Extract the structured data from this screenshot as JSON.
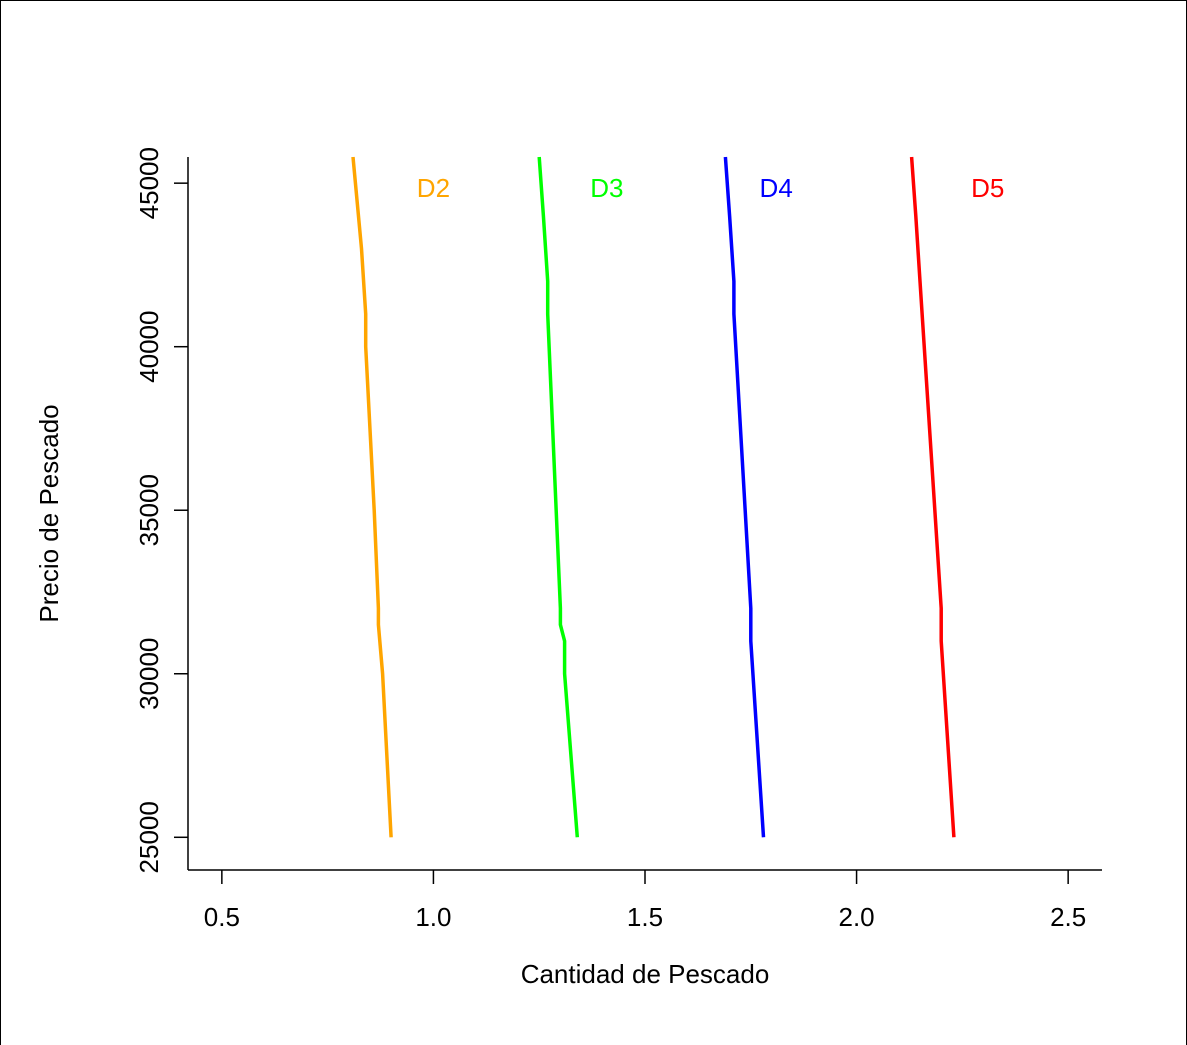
{
  "chart_data": {
    "type": "line",
    "xlabel": "Cantidad de Pescado",
    "ylabel": "Precio de Pescado",
    "xlim": [
      0.42,
      2.58
    ],
    "ylim": [
      24000,
      45800
    ],
    "xticks": [
      0.5,
      1.0,
      1.5,
      2.0,
      2.5
    ],
    "xtick_labels": [
      "0.5",
      "1.0",
      "1.5",
      "2.0",
      "2.5"
    ],
    "yticks": [
      25000,
      30000,
      35000,
      40000,
      45000
    ],
    "ytick_labels": [
      "25000",
      "30000",
      "35000",
      "40000",
      "45000"
    ],
    "grid": false,
    "series": [
      {
        "name": "D2",
        "color": "#FFA500",
        "label_at": [
          1.0,
          45000
        ],
        "x": [
          0.9,
          0.88,
          0.87,
          0.87,
          0.86,
          0.84,
          0.84,
          0.83,
          0.81
        ],
        "y": [
          25000,
          30000,
          31500,
          32000,
          35000,
          40000,
          41000,
          43000,
          45800
        ]
      },
      {
        "name": "D3",
        "color": "#00FF00",
        "label_at": [
          1.41,
          45000
        ],
        "x": [
          1.34,
          1.31,
          1.31,
          1.3,
          1.3,
          1.27,
          1.27,
          1.26,
          1.25
        ],
        "y": [
          25000,
          30000,
          31000,
          31500,
          32000,
          41000,
          42000,
          44000,
          45800
        ]
      },
      {
        "name": "D4",
        "color": "#0000FF",
        "label_at": [
          1.81,
          45000
        ],
        "x": [
          1.78,
          1.75,
          1.75,
          1.75,
          1.71,
          1.71,
          1.7,
          1.69
        ],
        "y": [
          25000,
          31000,
          31500,
          32000,
          41000,
          42000,
          44000,
          45800
        ]
      },
      {
        "name": "D5",
        "color": "#FF0000",
        "label_at": [
          2.31,
          45000
        ],
        "x": [
          2.23,
          2.2,
          2.2,
          2.2,
          2.15,
          2.14,
          2.13
        ],
        "y": [
          25000,
          31000,
          31500,
          32000,
          42000,
          44000,
          45800
        ]
      }
    ]
  }
}
